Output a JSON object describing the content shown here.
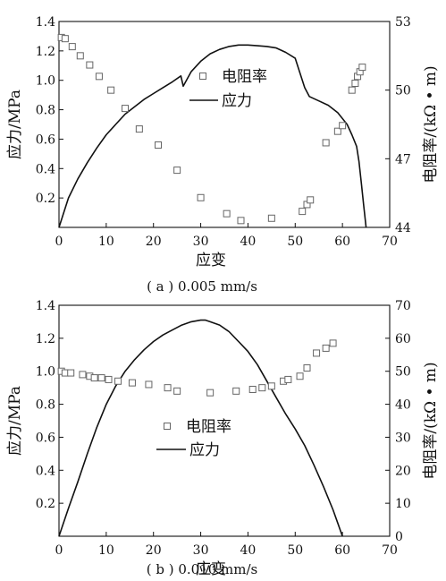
{
  "chart_data": [
    {
      "type": "line",
      "caption": "( a ) 0.005 mm/s",
      "xlabel": "应变",
      "ylabel": "应力/MPa",
      "y2label": "电阻率/(kΩ • m)",
      "xlim": [
        0,
        70
      ],
      "ylim": [
        0,
        1.4
      ],
      "y2lim": [
        44,
        53
      ],
      "x_ticks": [
        "0",
        "10",
        "20",
        "30",
        "40",
        "50",
        "60",
        "70"
      ],
      "y_ticks": [
        "0.2",
        "0.4",
        "0.6",
        "0.8",
        "1.0",
        "1.2",
        "1.4"
      ],
      "y2_ticks": [
        "44",
        "47",
        "50",
        "53"
      ],
      "legend": {
        "resistivity": "电阻率",
        "stress": "应力"
      },
      "series": [
        {
          "name": "应力",
          "style": "line",
          "axis": "left",
          "x": [
            0,
            2,
            4,
            6,
            8,
            10,
            12,
            14,
            16,
            18,
            20,
            22,
            24,
            25.8,
            26.3,
            28,
            30,
            32,
            34,
            36,
            38,
            40,
            42,
            44,
            46,
            48,
            50,
            51,
            52,
            53,
            55,
            57,
            59,
            61,
            62,
            63,
            63.5,
            64,
            64.5,
            65
          ],
          "y": [
            0.0,
            0.2,
            0.33,
            0.44,
            0.54,
            0.63,
            0.7,
            0.77,
            0.82,
            0.87,
            0.91,
            0.95,
            0.99,
            1.03,
            0.96,
            1.06,
            1.13,
            1.18,
            1.21,
            1.23,
            1.24,
            1.24,
            1.235,
            1.23,
            1.22,
            1.19,
            1.15,
            1.05,
            0.95,
            0.89,
            0.86,
            0.83,
            0.78,
            0.7,
            0.63,
            0.55,
            0.45,
            0.3,
            0.15,
            0.0
          ]
        },
        {
          "name": "电阻率",
          "style": "markers",
          "axis": "right",
          "x": [
            0.5,
            1.3,
            2.8,
            4.5,
            6.5,
            8.5,
            11,
            14,
            17,
            21,
            25,
            30,
            35.5,
            38.5,
            45,
            51.5,
            52.5,
            53.2,
            56.5,
            59,
            60,
            62,
            62.7,
            63.2,
            63.7,
            64.2
          ],
          "y": [
            52.3,
            52.25,
            51.9,
            51.5,
            51.1,
            50.6,
            50.0,
            49.2,
            48.3,
            47.6,
            46.5,
            45.3,
            44.6,
            44.3,
            44.4,
            44.7,
            45.0,
            45.2,
            47.7,
            48.2,
            48.45,
            50.0,
            50.3,
            50.6,
            50.8,
            51.0
          ]
        }
      ]
    },
    {
      "type": "line",
      "caption": "( b ) 0.010 mm/s",
      "xlabel": "应变",
      "ylabel": "应力/MPa",
      "y2label": "电阻率/(kΩ • m)",
      "xlim": [
        0,
        70
      ],
      "ylim": [
        0,
        1.4
      ],
      "y2lim": [
        0,
        70
      ],
      "x_ticks": [
        "0",
        "10",
        "20",
        "30",
        "40",
        "50",
        "60",
        "70"
      ],
      "y_ticks": [
        "0.2",
        "0.4",
        "0.6",
        "0.8",
        "1.0",
        "1.2",
        "1.4"
      ],
      "y2_ticks": [
        "0",
        "10",
        "20",
        "30",
        "40",
        "50",
        "60",
        "70"
      ],
      "legend": {
        "resistivity": "电阻率",
        "stress": "应力"
      },
      "series": [
        {
          "name": "应力",
          "style": "line",
          "axis": "left",
          "x": [
            0,
            2,
            4,
            6,
            8,
            10,
            12,
            14,
            16,
            18,
            20,
            22,
            24,
            26,
            28,
            30,
            31,
            32,
            34,
            36,
            38,
            40,
            42,
            44,
            46,
            48,
            50,
            52,
            54,
            56,
            58,
            59,
            60
          ],
          "y": [
            0.0,
            0.17,
            0.33,
            0.5,
            0.66,
            0.8,
            0.91,
            1.0,
            1.07,
            1.13,
            1.18,
            1.22,
            1.25,
            1.28,
            1.3,
            1.31,
            1.31,
            1.3,
            1.28,
            1.24,
            1.18,
            1.12,
            1.04,
            0.94,
            0.84,
            0.74,
            0.65,
            0.55,
            0.43,
            0.3,
            0.16,
            0.08,
            0.0
          ]
        },
        {
          "name": "电阻率",
          "style": "markers",
          "axis": "right",
          "x": [
            0.5,
            1.3,
            2.5,
            5,
            6.5,
            7.5,
            9,
            10.5,
            12.5,
            15.5,
            19,
            23,
            25,
            32,
            37.5,
            41,
            43,
            45,
            47.5,
            48.5,
            51,
            52.5,
            54.5,
            56.5,
            58
          ],
          "y": [
            50,
            49.5,
            49.5,
            49,
            48.5,
            48,
            48,
            47.5,
            47,
            46.5,
            46,
            45,
            44,
            43.5,
            44,
            44.5,
            45,
            45.5,
            47,
            47.5,
            48.5,
            51,
            55.5,
            57,
            58.5
          ]
        }
      ]
    }
  ]
}
